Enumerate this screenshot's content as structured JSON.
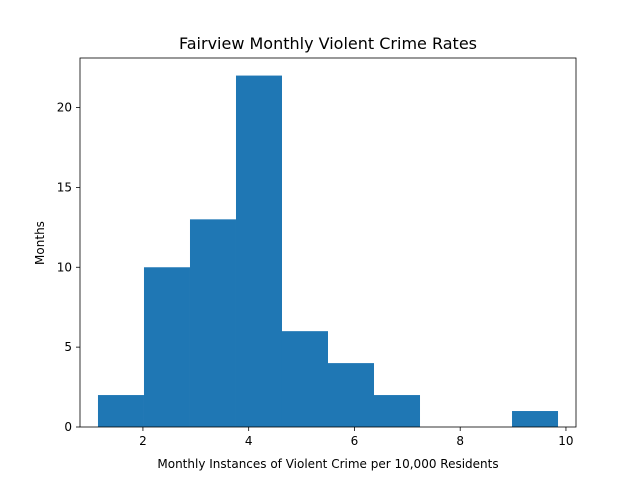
{
  "chart_data": {
    "type": "histogram",
    "title": "Fairview Monthly Violent Crime Rates",
    "xlabel": "Monthly Instances of Violent Crime per 10,000 Residents",
    "ylabel": "Months",
    "xlim": [
      0.81,
      10.19
    ],
    "ylim": [
      0,
      23.1
    ],
    "xticks": [
      2,
      4,
      6,
      8,
      10
    ],
    "yticks": [
      0,
      5,
      10,
      15,
      20
    ],
    "bar_color": "#1f77b4",
    "bins": [
      {
        "start": 1.15,
        "end": 2.02,
        "count": 2
      },
      {
        "start": 2.02,
        "end": 2.89,
        "count": 10
      },
      {
        "start": 2.89,
        "end": 3.76,
        "count": 13
      },
      {
        "start": 3.76,
        "end": 4.63,
        "count": 22
      },
      {
        "start": 4.63,
        "end": 5.5,
        "count": 6
      },
      {
        "start": 5.5,
        "end": 6.37,
        "count": 4
      },
      {
        "start": 6.37,
        "end": 7.24,
        "count": 2
      },
      {
        "start": 7.24,
        "end": 8.11,
        "count": 0
      },
      {
        "start": 8.11,
        "end": 8.98,
        "count": 0
      },
      {
        "start": 8.98,
        "end": 9.85,
        "count": 1
      }
    ]
  }
}
